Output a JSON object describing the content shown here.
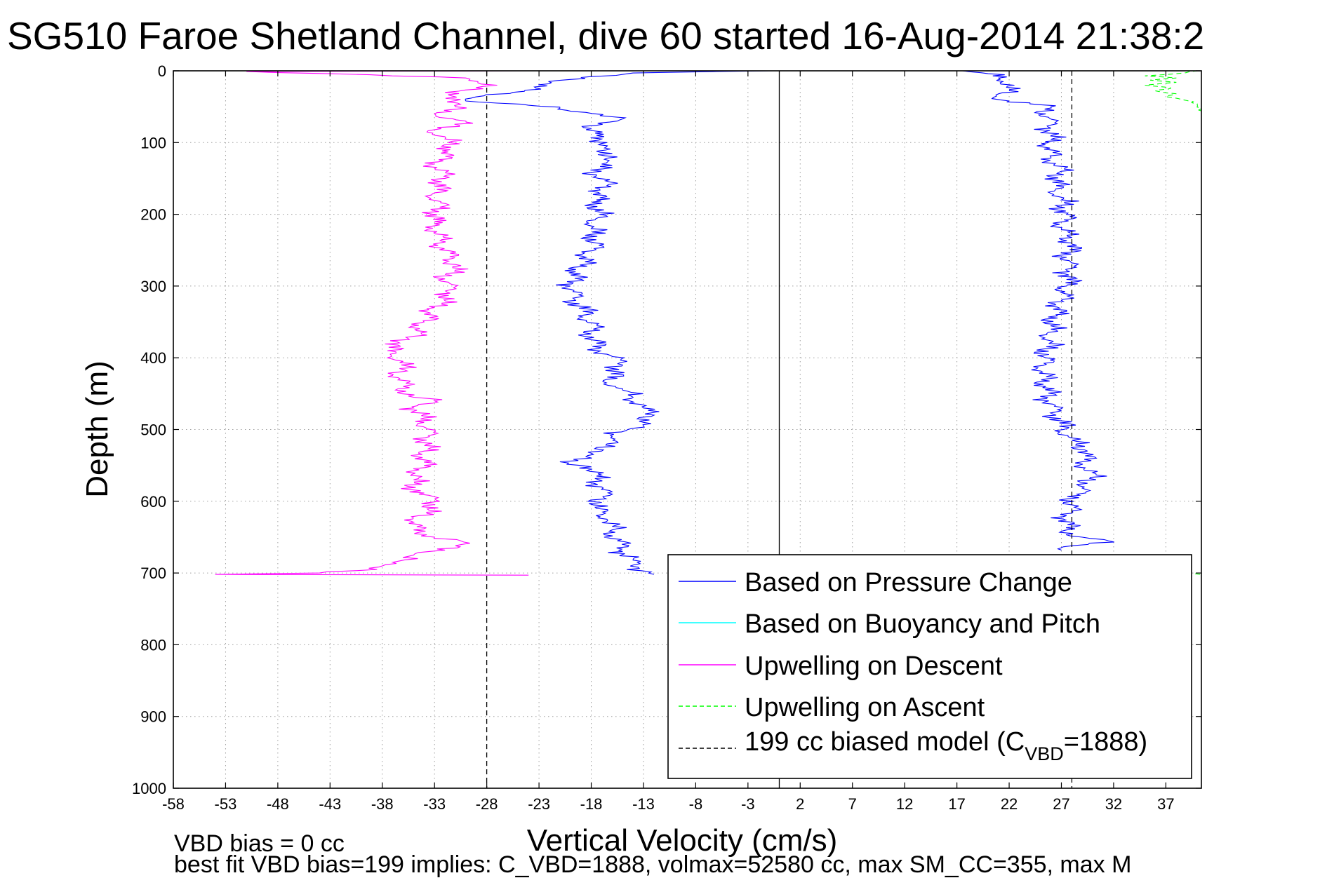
{
  "chart_data": {
    "type": "line",
    "title": "SG510 Faroe Shetland Channel, dive 60 started 16-Aug-2014 21:38:2",
    "xlabel": "Vertical Velocity (cm/s)",
    "ylabel": "Depth (m)",
    "xlim": [
      -58,
      40.4
    ],
    "ylim": [
      0,
      1000
    ],
    "y_reversed": true,
    "grid": true,
    "x_ticks": [
      -58,
      -53,
      -48,
      -43,
      -38,
      -33,
      -28,
      -23,
      -18,
      -13,
      -8,
      -3,
      2,
      7,
      12,
      17,
      22,
      27,
      32,
      37
    ],
    "y_ticks": [
      0,
      100,
      200,
      300,
      400,
      500,
      600,
      700,
      800,
      900,
      1000
    ],
    "annotations": {
      "vbd_bias": "VBD bias = 0 cc",
      "best_fit": "best fit VBD bias=199 implies: C_VBD=1888, volmax=52580 cc, max SM_CC=355, max M"
    },
    "legend": {
      "placement": "bottom-right",
      "entries": [
        {
          "label": "Based on Pressure Change",
          "color": "#0000ff",
          "style": "solid"
        },
        {
          "label": "Based on Buoyancy and Pitch",
          "color": "#00ffff",
          "style": "solid"
        },
        {
          "label": "Upwelling on Descent",
          "color": "#ff00ff",
          "style": "solid"
        },
        {
          "label": "Upwelling on Ascent",
          "color": "#00ff00",
          "style": "dashed"
        },
        {
          "label_main": "199 cc biased model (C",
          "label_sub": "VBD",
          "label_tail": "=1888)",
          "color": "#000000",
          "style": "dashed"
        }
      ]
    },
    "series": [
      {
        "name": "Based on Pressure Change",
        "color": "#0000ff",
        "style": "solid",
        "points": [
          [
            -0.5,
            0
          ],
          [
            -6,
            1
          ],
          [
            -14,
            3
          ],
          [
            -18,
            8
          ],
          [
            -20,
            12
          ],
          [
            -22,
            18
          ],
          [
            -25.5,
            30
          ],
          [
            -29.5,
            38
          ],
          [
            -30,
            42
          ],
          [
            -27,
            45
          ],
          [
            -24,
            48
          ],
          [
            -21,
            52
          ],
          [
            -18.5,
            58
          ],
          [
            -16,
            64
          ],
          [
            -15.5,
            70
          ],
          [
            -17.5,
            76
          ],
          [
            -18.5,
            82
          ],
          [
            -17.5,
            90
          ],
          [
            -16.5,
            100
          ],
          [
            -17.5,
            112
          ],
          [
            -15.5,
            120
          ],
          [
            -17,
            130
          ],
          [
            -17.5,
            145
          ],
          [
            -16.5,
            160
          ],
          [
            -17.5,
            180
          ],
          [
            -17.2,
            200
          ],
          [
            -18,
            220
          ],
          [
            -17.5,
            240
          ],
          [
            -18.5,
            260
          ],
          [
            -19.5,
            280
          ],
          [
            -20,
            300
          ],
          [
            -19.5,
            320
          ],
          [
            -18.5,
            340
          ],
          [
            -17.8,
            360
          ],
          [
            -18,
            375
          ],
          [
            -16.5,
            395
          ],
          [
            -15,
            410
          ],
          [
            -16.5,
            430
          ],
          [
            -15,
            445
          ],
          [
            -14,
            455
          ],
          [
            -13,
            470
          ],
          [
            -12,
            480
          ],
          [
            -13,
            490
          ],
          [
            -14.5,
            500
          ],
          [
            -16,
            510
          ],
          [
            -16.5,
            520
          ],
          [
            -17,
            530
          ],
          [
            -18.5,
            538
          ],
          [
            -21,
            545
          ],
          [
            -18,
            552
          ],
          [
            -17.5,
            565
          ],
          [
            -17,
            580
          ],
          [
            -16.8,
            595
          ],
          [
            -17.5,
            610
          ],
          [
            -16.5,
            625
          ],
          [
            -16,
            640
          ],
          [
            -15.5,
            655
          ],
          [
            -15,
            670
          ],
          [
            -14,
            682
          ],
          [
            -13.5,
            692
          ],
          [
            -12.5,
            700
          ],
          [
            -12,
            702
          ]
        ]
      },
      {
        "name": "Upwelling on Descent",
        "color": "#ff00ff",
        "style": "solid",
        "points": [
          [
            -24,
            0
          ],
          [
            -51,
            1
          ],
          [
            -30,
            10
          ],
          [
            -27,
            20
          ],
          [
            -32,
            30
          ],
          [
            -30.5,
            40
          ],
          [
            -31,
            50
          ],
          [
            -33,
            60
          ],
          [
            -30,
            70
          ],
          [
            -33,
            82
          ],
          [
            -32,
            95
          ],
          [
            -31.5,
            110
          ],
          [
            -33,
            130
          ],
          [
            -32,
            150
          ],
          [
            -33,
            170
          ],
          [
            -32.5,
            190
          ],
          [
            -33,
            210
          ],
          [
            -32.5,
            240
          ],
          [
            -31,
            270
          ],
          [
            -32,
            290
          ],
          [
            -31.5,
            310
          ],
          [
            -33,
            330
          ],
          [
            -34,
            350
          ],
          [
            -35,
            370
          ],
          [
            -37.5,
            390
          ],
          [
            -36,
            405
          ],
          [
            -36.5,
            420
          ],
          [
            -36,
            440
          ],
          [
            -35,
            455
          ],
          [
            -33,
            460
          ],
          [
            -35,
            470
          ],
          [
            -34,
            490
          ],
          [
            -33.5,
            510
          ],
          [
            -34,
            530
          ],
          [
            -34,
            550
          ],
          [
            -35,
            570
          ],
          [
            -34.5,
            590
          ],
          [
            -32.5,
            600
          ],
          [
            -34.5,
            620
          ],
          [
            -35,
            640
          ],
          [
            -33,
            650
          ],
          [
            -30.5,
            655
          ],
          [
            -31,
            662
          ],
          [
            -32,
            668
          ],
          [
            -35,
            675
          ],
          [
            -37,
            685
          ],
          [
            -38.5,
            695
          ],
          [
            -44,
            700
          ],
          [
            -54,
            702
          ],
          [
            -24,
            703
          ]
        ]
      },
      {
        "name": "Based on Pressure Change (ascent)",
        "color": "#0000ff",
        "style": "solid",
        "points": [
          [
            17.5,
            0
          ],
          [
            20,
            4
          ],
          [
            21,
            10
          ],
          [
            22.5,
            20
          ],
          [
            21,
            32
          ],
          [
            20.5,
            37
          ],
          [
            22,
            42
          ],
          [
            24,
            46
          ],
          [
            26,
            50
          ],
          [
            25.5,
            60
          ],
          [
            26,
            80
          ],
          [
            25.8,
            100
          ],
          [
            26,
            120
          ],
          [
            27,
            140
          ],
          [
            26.5,
            160
          ],
          [
            27,
            180
          ],
          [
            27.5,
            200
          ],
          [
            27,
            220
          ],
          [
            28,
            240
          ],
          [
            27.5,
            260
          ],
          [
            27.8,
            280
          ],
          [
            27.5,
            300
          ],
          [
            27,
            320
          ],
          [
            26.5,
            340
          ],
          [
            26,
            360
          ],
          [
            25.8,
            380
          ],
          [
            25.5,
            400
          ],
          [
            25.2,
            420
          ],
          [
            25.5,
            440
          ],
          [
            25.8,
            460
          ],
          [
            26.5,
            480
          ],
          [
            27.2,
            500
          ],
          [
            28,
            515
          ],
          [
            29.5,
            530
          ],
          [
            29,
            545
          ],
          [
            30,
            560
          ],
          [
            29.5,
            575
          ],
          [
            28.5,
            590
          ],
          [
            28,
            605
          ],
          [
            27.5,
            620
          ],
          [
            27.5,
            640
          ],
          [
            29,
            650
          ],
          [
            31.5,
            655
          ],
          [
            28,
            662
          ],
          [
            27,
            668
          ]
        ]
      },
      {
        "name": "Upwelling on Ascent",
        "color": "#00ff00",
        "style": "dashed",
        "points": [
          [
            23,
            0
          ],
          [
            40,
            0
          ],
          [
            38,
            4
          ],
          [
            35,
            7
          ],
          [
            38,
            10
          ],
          [
            35.5,
            13
          ],
          [
            38,
            16
          ],
          [
            35,
            20
          ],
          [
            37.5,
            24
          ],
          [
            36,
            28
          ],
          [
            38,
            32
          ],
          [
            37,
            36
          ],
          [
            38.5,
            40
          ],
          [
            40,
            46
          ],
          [
            40.4,
            52
          ],
          [
            40.4,
            56
          ]
        ]
      },
      {
        "name": "Upwelling on Ascent (bottom)",
        "color": "#00ff00",
        "style": "dashed",
        "points": [
          [
            39,
            700
          ],
          [
            40.4,
            702
          ]
        ]
      },
      {
        "name": "199 cc biased model (C_VBD=1888) descent",
        "color": "#000000",
        "style": "dashed",
        "points": [
          [
            -28,
            0
          ],
          [
            -28,
            1000
          ]
        ]
      },
      {
        "name": "199 cc biased model (C_VBD=1888) ascent",
        "color": "#000000",
        "style": "dashed",
        "points": [
          [
            28,
            0
          ],
          [
            28,
            1000
          ]
        ]
      },
      {
        "name": "zero line",
        "color": "#000000",
        "style": "solid",
        "points": [
          [
            0,
            0
          ],
          [
            0,
            1000
          ]
        ]
      }
    ]
  }
}
